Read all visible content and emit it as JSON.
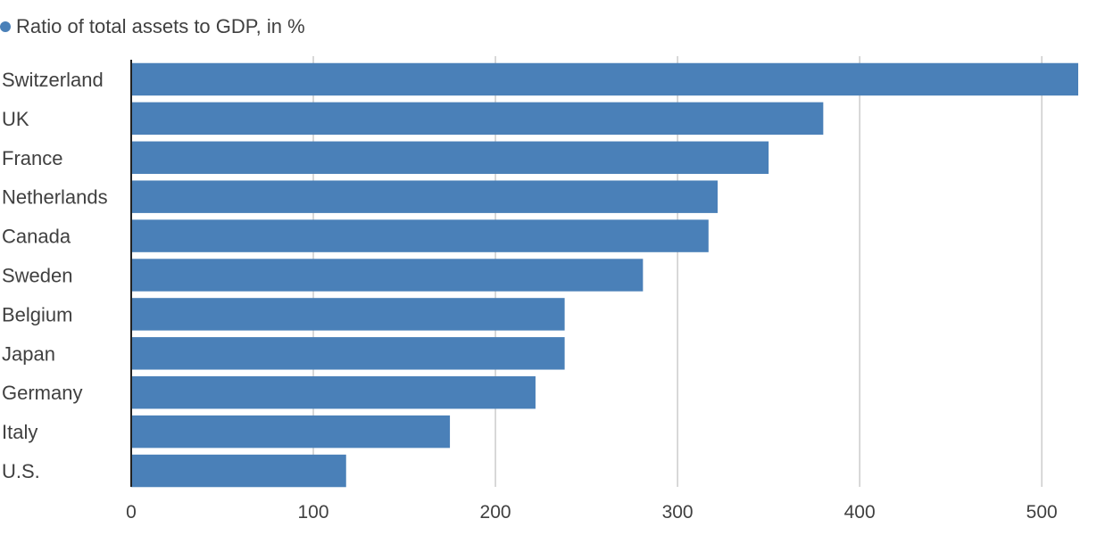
{
  "legend": {
    "label": "Ratio of total assets to GDP, in %"
  },
  "colors": {
    "bar": "#4a80b8",
    "grid": "#cccccc",
    "axis": "#222222"
  },
  "chart_data": {
    "type": "bar",
    "orientation": "horizontal",
    "categories": [
      "Switzerland",
      "UK",
      "France",
      "Netherlands",
      "Canada",
      "Sweden",
      "Belgium",
      "Japan",
      "Germany",
      "Italy",
      "U.S."
    ],
    "series": [
      {
        "name": "Ratio of total assets to GDP, in %",
        "values": [
          520,
          380,
          350,
          322,
          317,
          281,
          238,
          238,
          222,
          175,
          118
        ]
      }
    ],
    "xlim": [
      0,
      520
    ],
    "xticks": [
      0,
      100,
      200,
      300,
      400,
      500
    ],
    "grid": true,
    "legend_position": "top-left",
    "title": "",
    "xlabel": "",
    "ylabel": ""
  }
}
